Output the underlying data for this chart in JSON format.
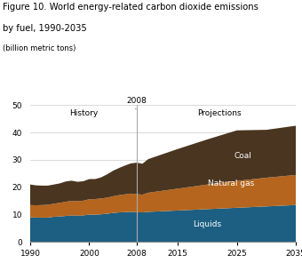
{
  "title_line1": "Figure 10. World energy-related carbon dioxide emissions",
  "title_line2": "by fuel, 1990-2035",
  "subtitle": "(billion metric tons)",
  "years": [
    1990,
    1991,
    1992,
    1993,
    1994,
    1995,
    1996,
    1997,
    1998,
    1999,
    2000,
    2001,
    2002,
    2003,
    2004,
    2005,
    2006,
    2007,
    2008,
    2009,
    2010,
    2015,
    2020,
    2025,
    2030,
    2035
  ],
  "liquids": [
    9.0,
    8.9,
    8.9,
    8.9,
    9.2,
    9.3,
    9.5,
    9.7,
    9.6,
    9.7,
    10.0,
    10.0,
    10.1,
    10.3,
    10.6,
    10.8,
    10.9,
    11.0,
    10.9,
    10.8,
    11.0,
    11.5,
    12.0,
    12.5,
    13.0,
    13.5
  ],
  "natural_gas": [
    4.5,
    4.5,
    4.6,
    4.7,
    4.8,
    5.0,
    5.2,
    5.3,
    5.3,
    5.4,
    5.6,
    5.7,
    5.8,
    5.9,
    6.1,
    6.3,
    6.5,
    6.7,
    6.6,
    6.5,
    7.0,
    8.0,
    9.0,
    9.8,
    10.5,
    11.0
  ],
  "coal": [
    7.5,
    7.3,
    7.1,
    7.0,
    7.0,
    7.1,
    7.4,
    7.4,
    7.1,
    7.1,
    7.4,
    7.3,
    7.7,
    8.5,
    9.3,
    9.9,
    10.5,
    11.0,
    11.5,
    11.3,
    12.3,
    14.5,
    16.5,
    18.5,
    17.5,
    18.0
  ],
  "color_liquids": "#1c5f82",
  "color_natural_gas": "#b5651d",
  "color_coal": "#4a3520",
  "ylim": [
    0,
    50
  ],
  "yticks": [
    0,
    10,
    20,
    30,
    40,
    50
  ],
  "xlim": [
    1990,
    2035
  ],
  "xticks": [
    1990,
    2000,
    2008,
    2015,
    2025,
    2035
  ],
  "divider_year": 2008,
  "label_history": "History",
  "label_projections": "Projections",
  "label_coal": "Coal",
  "label_gas": "Natural gas",
  "label_liquids": "Liquids"
}
